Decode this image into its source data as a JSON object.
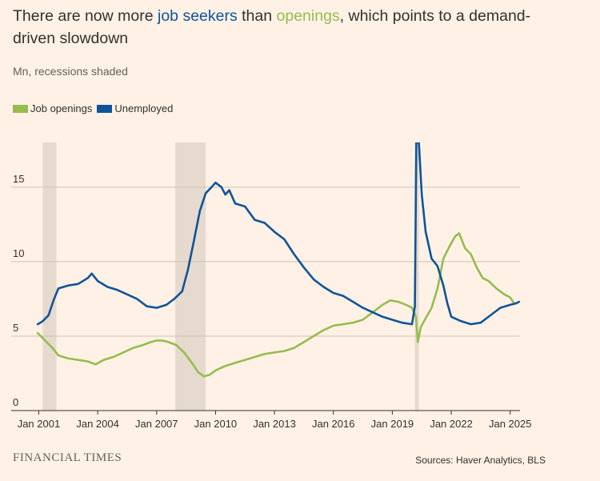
{
  "title": {
    "part1": "There are now more ",
    "unemp": "job seekers",
    "part2": " than ",
    "open": "openings",
    "part3": ", which points to a demand-driven slowdown"
  },
  "subtitle": "Mn, recessions shaded",
  "footer": {
    "logo": "FINANCIAL TIMES",
    "source": "Sources: Haver Analytics, BLS"
  },
  "colors": {
    "openings": "#96bc4e",
    "unemployed": "#0f5499",
    "recession": "#e6d9ce",
    "grid": "#ccc1b7",
    "background": "#fff1e5"
  },
  "chart_data": {
    "type": "line",
    "title": "There are now more job seekers than openings, which points to a demand-driven slowdown",
    "ylabel": "Mn, recessions shaded",
    "xlim": [
      2000.9,
      2025.5
    ],
    "ylim": [
      0,
      18
    ],
    "x_ticks": [
      {
        "value": 2001.0,
        "label": "Jan 2001"
      },
      {
        "value": 2004.0,
        "label": "Jan 2004"
      },
      {
        "value": 2007.0,
        "label": "Jan 2007"
      },
      {
        "value": 2010.0,
        "label": "Jan 2010"
      },
      {
        "value": 2013.0,
        "label": "Jan 2013"
      },
      {
        "value": 2016.0,
        "label": "Jan 2016"
      },
      {
        "value": 2019.0,
        "label": "Jan 2019"
      },
      {
        "value": 2022.0,
        "label": "Jan 2022"
      },
      {
        "value": 2025.0,
        "label": "Jan 2025"
      }
    ],
    "y_ticks": [
      0,
      5,
      10,
      15
    ],
    "grid": true,
    "legend_position": "top-left",
    "recessions": [
      {
        "start": 2001.2,
        "end": 2001.9
      },
      {
        "start": 2007.95,
        "end": 2009.5
      },
      {
        "start": 2020.15,
        "end": 2020.35
      }
    ],
    "series": [
      {
        "name": "Job openings",
        "color": "#96bc4e",
        "points": [
          [
            2000.95,
            5.2
          ],
          [
            2001.1,
            5.0
          ],
          [
            2001.4,
            4.6
          ],
          [
            2001.7,
            4.2
          ],
          [
            2002.0,
            3.7
          ],
          [
            2002.5,
            3.5
          ],
          [
            2003.0,
            3.4
          ],
          [
            2003.5,
            3.3
          ],
          [
            2003.9,
            3.1
          ],
          [
            2004.3,
            3.4
          ],
          [
            2004.8,
            3.6
          ],
          [
            2005.3,
            3.9
          ],
          [
            2005.8,
            4.2
          ],
          [
            2006.3,
            4.4
          ],
          [
            2006.7,
            4.6
          ],
          [
            2007.0,
            4.7
          ],
          [
            2007.3,
            4.7
          ],
          [
            2007.6,
            4.6
          ],
          [
            2008.0,
            4.4
          ],
          [
            2008.4,
            3.9
          ],
          [
            2008.8,
            3.2
          ],
          [
            2009.1,
            2.6
          ],
          [
            2009.4,
            2.3
          ],
          [
            2009.7,
            2.4
          ],
          [
            2010.0,
            2.7
          ],
          [
            2010.5,
            3.0
          ],
          [
            2011.0,
            3.2
          ],
          [
            2011.5,
            3.4
          ],
          [
            2012.0,
            3.6
          ],
          [
            2012.5,
            3.8
          ],
          [
            2013.0,
            3.9
          ],
          [
            2013.5,
            4.0
          ],
          [
            2014.0,
            4.2
          ],
          [
            2014.5,
            4.6
          ],
          [
            2015.0,
            5.0
          ],
          [
            2015.5,
            5.4
          ],
          [
            2016.0,
            5.7
          ],
          [
            2016.5,
            5.8
          ],
          [
            2017.0,
            5.9
          ],
          [
            2017.5,
            6.1
          ],
          [
            2018.0,
            6.6
          ],
          [
            2018.5,
            7.1
          ],
          [
            2018.9,
            7.4
          ],
          [
            2019.3,
            7.3
          ],
          [
            2019.7,
            7.1
          ],
          [
            2020.0,
            6.9
          ],
          [
            2020.2,
            6.3
          ],
          [
            2020.3,
            4.6
          ],
          [
            2020.45,
            5.6
          ],
          [
            2020.7,
            6.2
          ],
          [
            2021.0,
            6.9
          ],
          [
            2021.3,
            8.2
          ],
          [
            2021.6,
            10.2
          ],
          [
            2021.9,
            11.0
          ],
          [
            2022.2,
            11.7
          ],
          [
            2022.4,
            11.9
          ],
          [
            2022.7,
            10.9
          ],
          [
            2023.0,
            10.5
          ],
          [
            2023.3,
            9.6
          ],
          [
            2023.6,
            8.9
          ],
          [
            2023.9,
            8.7
          ],
          [
            2024.3,
            8.2
          ],
          [
            2024.7,
            7.8
          ],
          [
            2025.0,
            7.6
          ],
          [
            2025.2,
            7.2
          ]
        ]
      },
      {
        "name": "Unemployed",
        "color": "#0f5499",
        "points": [
          [
            2000.95,
            5.8
          ],
          [
            2001.2,
            6.0
          ],
          [
            2001.5,
            6.4
          ],
          [
            2001.75,
            7.4
          ],
          [
            2002.0,
            8.2
          ],
          [
            2002.5,
            8.4
          ],
          [
            2003.0,
            8.5
          ],
          [
            2003.5,
            8.9
          ],
          [
            2003.7,
            9.2
          ],
          [
            2004.0,
            8.7
          ],
          [
            2004.5,
            8.3
          ],
          [
            2005.0,
            8.1
          ],
          [
            2005.5,
            7.8
          ],
          [
            2006.0,
            7.5
          ],
          [
            2006.5,
            7.0
          ],
          [
            2007.0,
            6.9
          ],
          [
            2007.5,
            7.1
          ],
          [
            2007.9,
            7.5
          ],
          [
            2008.3,
            8.0
          ],
          [
            2008.6,
            9.5
          ],
          [
            2008.9,
            11.4
          ],
          [
            2009.2,
            13.4
          ],
          [
            2009.5,
            14.6
          ],
          [
            2009.8,
            15.0
          ],
          [
            2010.0,
            15.3
          ],
          [
            2010.3,
            15.0
          ],
          [
            2010.5,
            14.5
          ],
          [
            2010.7,
            14.8
          ],
          [
            2011.0,
            13.9
          ],
          [
            2011.5,
            13.7
          ],
          [
            2012.0,
            12.8
          ],
          [
            2012.5,
            12.6
          ],
          [
            2013.0,
            12.0
          ],
          [
            2013.5,
            11.5
          ],
          [
            2014.0,
            10.5
          ],
          [
            2014.5,
            9.6
          ],
          [
            2015.0,
            8.8
          ],
          [
            2015.5,
            8.3
          ],
          [
            2016.0,
            7.9
          ],
          [
            2016.5,
            7.7
          ],
          [
            2017.0,
            7.3
          ],
          [
            2017.5,
            6.9
          ],
          [
            2018.0,
            6.6
          ],
          [
            2018.5,
            6.3
          ],
          [
            2019.0,
            6.1
          ],
          [
            2019.5,
            5.9
          ],
          [
            2020.0,
            5.8
          ],
          [
            2020.15,
            7.0
          ],
          [
            2020.22,
            18.0
          ],
          [
            2020.35,
            18.0
          ],
          [
            2020.5,
            14.5
          ],
          [
            2020.7,
            12.0
          ],
          [
            2021.0,
            10.2
          ],
          [
            2021.3,
            9.7
          ],
          [
            2021.6,
            8.4
          ],
          [
            2021.8,
            7.2
          ],
          [
            2022.0,
            6.3
          ],
          [
            2022.5,
            6.0
          ],
          [
            2023.0,
            5.8
          ],
          [
            2023.5,
            5.9
          ],
          [
            2024.0,
            6.4
          ],
          [
            2024.5,
            6.9
          ],
          [
            2025.0,
            7.1
          ],
          [
            2025.3,
            7.2
          ],
          [
            2025.45,
            7.3
          ]
        ]
      }
    ]
  }
}
